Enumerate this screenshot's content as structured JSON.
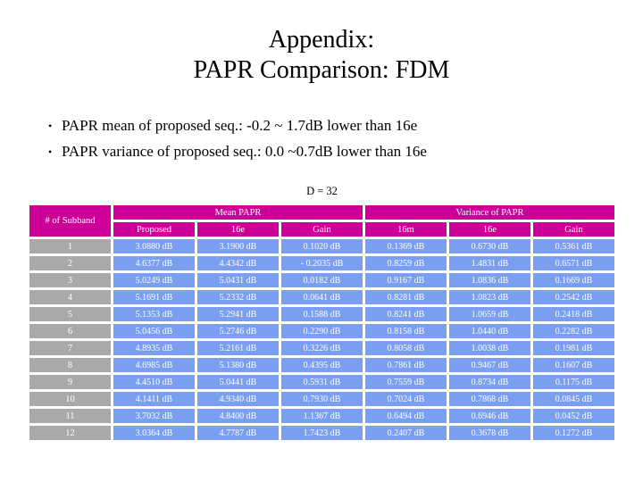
{
  "title": {
    "line1": "Appendix:",
    "line2": "PAPR Comparison: FDM"
  },
  "bullets": [
    "PAPR mean of proposed seq.: -0.2 ~ 1.7dB lower than 16e",
    "PAPR variance of proposed seq.: 0.0 ~0.7dB lower than 16e"
  ],
  "table": {
    "caption": "D = 32",
    "corner_header": "# of Subband",
    "groups": [
      {
        "label": "Mean PAPR"
      },
      {
        "label": "Variance of PAPR"
      }
    ],
    "subheaders": [
      "Proposed",
      "16e",
      "Gain",
      "16m",
      "16e",
      "Gain"
    ],
    "rows": [
      {
        "subband": "1",
        "cells": [
          "3.0880 dB",
          "3.1900 dB",
          "0.1020 dB",
          "0.1369 dB",
          "0.6730 dB",
          "0.5361 dB"
        ]
      },
      {
        "subband": "2",
        "cells": [
          "4.6377 dB",
          "4.4342 dB",
          "- 0.2035 dB",
          "0.8259 dB",
          "1.4831 dB",
          "0.6571 dB"
        ]
      },
      {
        "subband": "3",
        "cells": [
          "5.0249 dB",
          "5.0431 dB",
          "0.0182 dB",
          "0.9167 dB",
          "1.0836 dB",
          "0.1669 dB"
        ]
      },
      {
        "subband": "4",
        "cells": [
          "5.1691 dB",
          "5.2332 dB",
          "0.0641 dB",
          "0.8281 dB",
          "1.0823 dB",
          "0.2542 dB"
        ]
      },
      {
        "subband": "5",
        "cells": [
          "5.1353 dB",
          "5.2941 dB",
          "0.1588 dB",
          "0.8241 dB",
          "1.0659 dB",
          "0.2418 dB"
        ]
      },
      {
        "subband": "6",
        "cells": [
          "5.0456 dB",
          "5.2746 dB",
          "0.2290 dB",
          "0.8158 dB",
          "1.0440 dB",
          "0.2282 dB"
        ]
      },
      {
        "subband": "7",
        "cells": [
          "4.8935 dB",
          "5.2161 dB",
          "0.3226 dB",
          "0.8058 dB",
          "1.0038 dB",
          "0.1981 dB"
        ]
      },
      {
        "subband": "8",
        "cells": [
          "4.6985 dB",
          "5.1380 dB",
          "0.4395 dB",
          "0.7861 dB",
          "0.9467 dB",
          "0.1607 dB"
        ]
      },
      {
        "subband": "9",
        "cells": [
          "4.4510 dB",
          "5.0441 dB",
          "0.5931 dB",
          "0.7559 dB",
          "0.8734 dB",
          "0.1175 dB"
        ]
      },
      {
        "subband": "10",
        "cells": [
          "4.1411 dB",
          "4.9340 dB",
          "0.7930 dB",
          "0.7024 dB",
          "0.7868 dB",
          "0.0845 dB"
        ]
      },
      {
        "subband": "11",
        "cells": [
          "3.7032 dB",
          "4.8400 dB",
          "1.1367 dB",
          "0.6494 dB",
          "0.6946 dB",
          "0.0452 dB"
        ]
      },
      {
        "subband": "12",
        "cells": [
          "3.0364 dB",
          "4.7787 dB",
          "1.7423 dB",
          "0.2407 dB",
          "0.3678 dB",
          "0.1272 dB"
        ]
      }
    ]
  },
  "colors": {
    "header_bg": "#CC0099",
    "row_label_bg": "#A9A9A9",
    "data_cell_bg": "#7A9EF0",
    "table_text": "#FFFFFF",
    "body_text": "#000000",
    "background": "#FFFFFF"
  }
}
